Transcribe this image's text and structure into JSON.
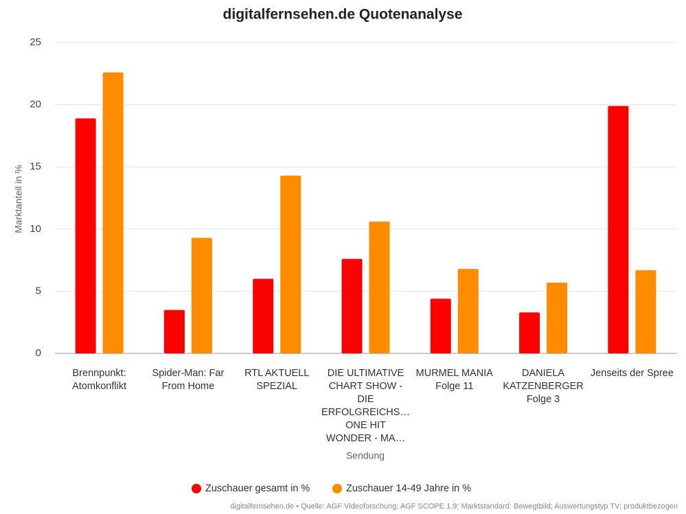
{
  "chart_data": {
    "type": "bar",
    "title": "digitalfernsehen.de Quotenanalyse",
    "x_label": "Sendung",
    "y_label": "Marktanteil in %",
    "categories": [
      [
        "Brennpunkt:",
        "Atomkonflikt"
      ],
      [
        "Spider-Man: Far",
        "From Home"
      ],
      [
        "RTL AKTUELL",
        "SPEZIAL"
      ],
      [
        "DIE ULTIMATIVE",
        "CHART SHOW -",
        "DIE",
        "ERFOLGREICHS…",
        "ONE HIT",
        "WONDER - MA…"
      ],
      [
        "MURMEL MANIA",
        "Folge 11"
      ],
      [
        "DANIELA",
        "KATZENBERGER",
        "Folge 3"
      ],
      [
        "Jenseits der Spree"
      ]
    ],
    "series": [
      {
        "name": "Zuschauer gesamt in %",
        "color": "#ff0000",
        "values": [
          18.9,
          3.5,
          6.0,
          7.6,
          4.4,
          3.3,
          19.9
        ]
      },
      {
        "name": "Zuschauer 14-49 Jahre in %",
        "color": "#ff8c00",
        "values": [
          22.6,
          9.3,
          14.3,
          10.6,
          6.8,
          5.7,
          6.7
        ]
      }
    ],
    "ylim": [
      0,
      25
    ],
    "yticks": [
      0,
      5,
      10,
      15,
      20,
      25
    ],
    "grid": true,
    "legend": "bottom",
    "footer": "digitalfernsehen.de • Quelle: AGF Videoforschung; AGF SCOPE 1.9; Marktstandard: Bewegtbild; Auswertungstyp TV; produktbezogen"
  }
}
